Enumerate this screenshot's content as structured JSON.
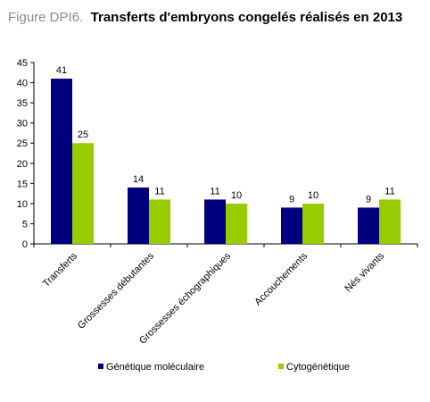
{
  "figure_label": "Figure DPI6.",
  "chart_data": {
    "type": "bar",
    "title": "Transferts d'embryons congelés réalisés en 2013",
    "categories": [
      "Transferts",
      "Grossesses débutantes",
      "Grossesses échographiques",
      "Accouchements",
      "Nés vivants"
    ],
    "series": [
      {
        "name": "Génétique moléculaire",
        "color": "#00007f",
        "values": [
          41,
          14,
          11,
          9,
          9
        ]
      },
      {
        "name": "Cytogénétique",
        "color": "#99cc00",
        "values": [
          25,
          11,
          10,
          10,
          11
        ]
      }
    ],
    "ylim": [
      0,
      45
    ],
    "yticks": [
      "0",
      "5",
      "10",
      "15",
      "20",
      "25",
      "30",
      "35",
      "40",
      "45"
    ],
    "grid": false,
    "legend": "bottom"
  }
}
